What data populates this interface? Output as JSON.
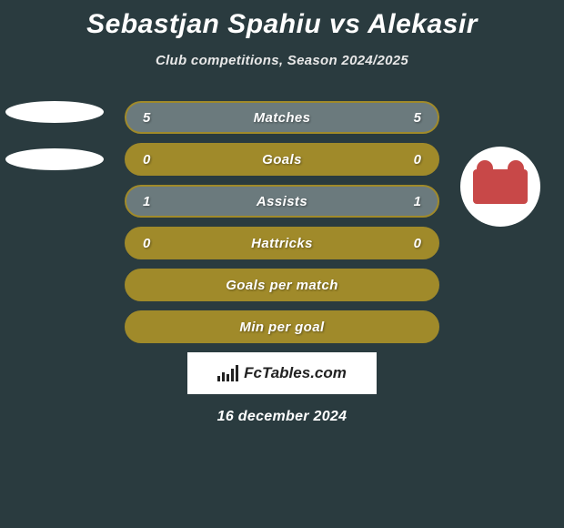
{
  "title": "Sebastjan Spahiu vs Alekasir",
  "subtitle": "Club competitions, Season 2024/2025",
  "date": "16 december 2024",
  "brand": "FcTables.com",
  "player_left_ellipses": 2,
  "colors": {
    "background": "#2a3b3f",
    "bar_border": "#a08a2a",
    "bar_fill": "#6b7a7d",
    "bar_fill_dark": "#4e5c5f",
    "text": "#ffffff"
  },
  "stats": [
    {
      "label": "Matches",
      "left_value": "5",
      "right_value": "5",
      "left_fill_pct": 50,
      "right_fill_pct": 50,
      "left_fill_color": "#6b7a7d",
      "right_fill_color": "#6b7a7d"
    },
    {
      "label": "Goals",
      "left_value": "0",
      "right_value": "0",
      "left_fill_pct": 0,
      "right_fill_pct": 0,
      "left_fill_color": "#a08a2a",
      "right_fill_color": "#a08a2a"
    },
    {
      "label": "Assists",
      "left_value": "1",
      "right_value": "1",
      "left_fill_pct": 50,
      "right_fill_pct": 50,
      "left_fill_color": "#6b7a7d",
      "right_fill_color": "#6b7a7d"
    },
    {
      "label": "Hattricks",
      "left_value": "0",
      "right_value": "0",
      "left_fill_pct": 0,
      "right_fill_pct": 0,
      "left_fill_color": "#a08a2a",
      "right_fill_color": "#a08a2a"
    },
    {
      "label": "Goals per match",
      "left_value": "",
      "right_value": "",
      "left_fill_pct": 0,
      "right_fill_pct": 0,
      "left_fill_color": "#a08a2a",
      "right_fill_color": "#a08a2a"
    },
    {
      "label": "Min per goal",
      "left_value": "",
      "right_value": "",
      "left_fill_pct": 0,
      "right_fill_pct": 0,
      "left_fill_color": "#a08a2a",
      "right_fill_color": "#a08a2a"
    }
  ]
}
